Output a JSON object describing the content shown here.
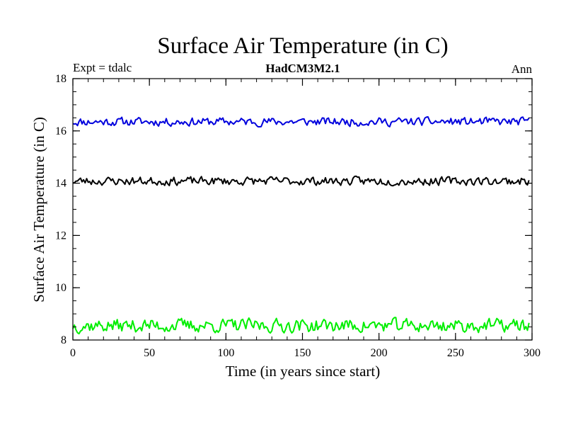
{
  "chart_data": {
    "type": "line",
    "title": "Surface Air Temperature (in C)",
    "subtitle_left": "Expt = tdalc",
    "subtitle_center": "HadCM3M2.1",
    "subtitle_right": "Ann",
    "xlabel": "Time (in years since start)",
    "ylabel": "Surface Air Temperature (in C)",
    "xlim": [
      0,
      300
    ],
    "ylim": [
      8,
      18
    ],
    "xticks": [
      0,
      50,
      100,
      150,
      200,
      250,
      300
    ],
    "yticks": [
      8,
      10,
      12,
      14,
      16,
      18
    ],
    "x_minor_step": 10,
    "y_minor_step": 0.5,
    "grid": false,
    "series": [
      {
        "name": "Blue series",
        "color": "#0000dd",
        "mean": 16.35,
        "amplitude": 0.11,
        "min_year": 0,
        "max_year": 298,
        "seed": 11
      },
      {
        "name": "Black series",
        "color": "#000000",
        "mean": 14.08,
        "amplitude": 0.11,
        "min_year": 0,
        "max_year": 298,
        "seed": 23
      },
      {
        "name": "Green series",
        "color": "#00ee00",
        "mean": 8.55,
        "amplitude": 0.18,
        "min_year": 0,
        "max_year": 298,
        "seed": 37
      }
    ]
  }
}
